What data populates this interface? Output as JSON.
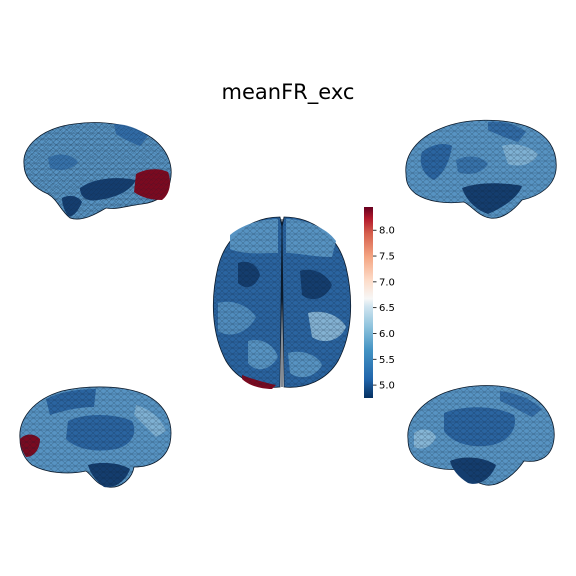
{
  "figure": {
    "title": "meanFR_exc"
  },
  "colorbar": {
    "vmin": 4.75,
    "vmax": 8.45,
    "colormap": "RdBu_r",
    "ticks": [
      "5.0",
      "5.5",
      "6.0",
      "6.5",
      "7.0",
      "7.5",
      "8.0"
    ],
    "tick_values": [
      5.0,
      5.5,
      6.0,
      6.5,
      7.0,
      7.5,
      8.0
    ]
  },
  "views": [
    {
      "name": "left-lateral-view"
    },
    {
      "name": "right-lateral-view"
    },
    {
      "name": "dorsal-view"
    },
    {
      "name": "left-medial-view"
    },
    {
      "name": "right-medial-view"
    }
  ],
  "colors": {
    "dark_blue": "#143d6e",
    "mid_blue": "#2a64a0",
    "light_blue": "#5793c2",
    "pale_blue": "#9ac4de",
    "dark_red": "#7a0a20",
    "background": "#ffffff"
  }
}
